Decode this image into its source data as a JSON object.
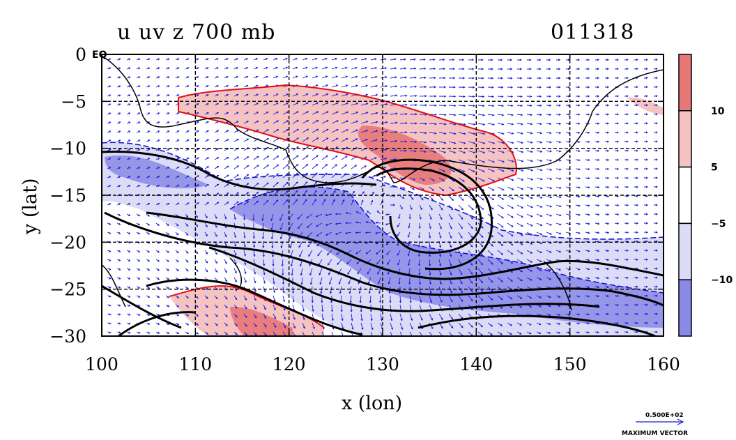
{
  "chart_data": {
    "type": "contour",
    "title": "u uv z 700 mb",
    "date_label": "011318",
    "xlabel": "x (lon)",
    "ylabel": "y (lat)",
    "xlim": [
      100,
      160
    ],
    "ylim": [
      -30,
      0
    ],
    "x_ticks": [
      100,
      110,
      120,
      130,
      140,
      150,
      160
    ],
    "y_ticks": [
      0,
      -5,
      -10,
      -15,
      -20,
      -25,
      -30
    ],
    "y_tick_labels": [
      "0",
      "−5",
      "−10",
      "−15",
      "−20",
      "−25",
      "−30"
    ],
    "y_zero_suffix": "EQ",
    "grid": true,
    "fields": [
      "u (shaded)",
      "uv (vectors)",
      "z (contours)"
    ],
    "colorbar": {
      "tick_labels": [
        "10",
        "5",
        "−5",
        "−10"
      ],
      "bins": [
        {
          "from": 10,
          "to": null,
          "color": "#e87777"
        },
        {
          "from": 5,
          "to": 10,
          "color": "#f6c3c3"
        },
        {
          "from": -5,
          "to": 5,
          "color": "#ffffff"
        },
        {
          "from": -10,
          "to": -5,
          "color": "#dcdcf7"
        },
        {
          "from": null,
          "to": -10,
          "color": "#8a8ae6"
        }
      ]
    },
    "vector_key": {
      "value": "0.500E+02",
      "label": "MAXIMUM VECTOR"
    },
    "colors": {
      "positive_contour": "#e01010",
      "negative_contour": "#1515d0",
      "height_contour": "#000000",
      "vector": "#1a1ae0",
      "grid": "#000000"
    }
  }
}
